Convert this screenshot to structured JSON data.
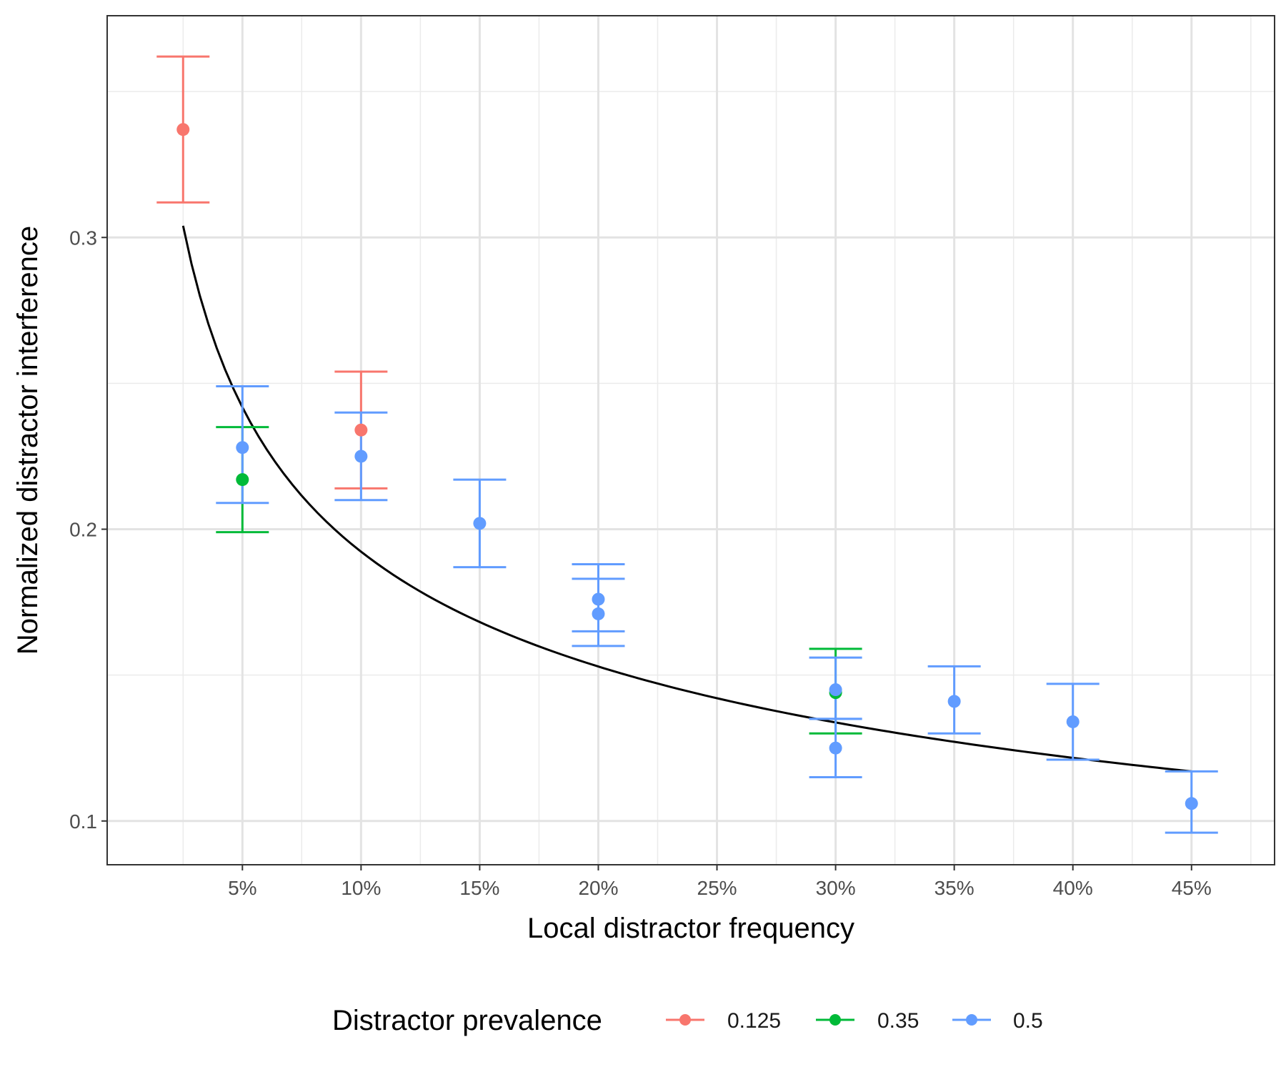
{
  "chart_data": {
    "type": "scatter",
    "title": "",
    "xlabel": "Local distractor frequency",
    "ylabel": "Normalized distractor interference",
    "x_ticks": [
      0.05,
      0.1,
      0.15,
      0.2,
      0.25,
      0.3,
      0.35,
      0.4,
      0.45
    ],
    "x_tick_labels": [
      "5%",
      "10%",
      "15%",
      "20%",
      "25%",
      "30%",
      "35%",
      "40%",
      "45%"
    ],
    "y_ticks": [
      0.1,
      0.2,
      0.3
    ],
    "y_tick_labels": [
      "0.1",
      "0.2",
      "0.3"
    ],
    "xlim": [
      -0.007,
      0.485
    ],
    "ylim": [
      0.085,
      0.376
    ],
    "grid": true,
    "legend": {
      "title": "Distractor prevalence",
      "position": "bottom"
    },
    "series": [
      {
        "name": "0.125",
        "color": "#F8766D",
        "points": [
          {
            "x": 0.025,
            "y": 0.337,
            "lo": 0.312,
            "hi": 0.362
          },
          {
            "x": 0.1,
            "y": 0.234,
            "lo": 0.214,
            "hi": 0.254
          }
        ]
      },
      {
        "name": "0.35",
        "color": "#00BA38",
        "points": [
          {
            "x": 0.05,
            "y": 0.217,
            "lo": 0.199,
            "hi": 0.235
          },
          {
            "x": 0.3,
            "y": 0.144,
            "lo": 0.13,
            "hi": 0.159
          }
        ]
      },
      {
        "name": "0.5",
        "color": "#619CFF",
        "points": [
          {
            "x": 0.05,
            "y": 0.228,
            "lo": 0.209,
            "hi": 0.249
          },
          {
            "x": 0.1,
            "y": 0.225,
            "lo": 0.21,
            "hi": 0.24
          },
          {
            "x": 0.15,
            "y": 0.202,
            "lo": 0.187,
            "hi": 0.217
          },
          {
            "x": 0.2,
            "y": 0.176,
            "lo": 0.165,
            "hi": 0.188
          },
          {
            "x": 0.2,
            "y": 0.171,
            "lo": 0.16,
            "hi": 0.183
          },
          {
            "x": 0.3,
            "y": 0.145,
            "lo": 0.135,
            "hi": 0.156
          },
          {
            "x": 0.3,
            "y": 0.125,
            "lo": 0.115,
            "hi": 0.135
          },
          {
            "x": 0.35,
            "y": 0.141,
            "lo": 0.13,
            "hi": 0.153
          },
          {
            "x": 0.4,
            "y": 0.134,
            "lo": 0.121,
            "hi": 0.147
          },
          {
            "x": 0.45,
            "y": 0.106,
            "lo": 0.096,
            "hi": 0.117
          }
        ]
      }
    ],
    "fit_line": {
      "color": "#000000",
      "points": [
        [
          0.025,
          0.304
        ],
        [
          0.03,
          0.287
        ],
        [
          0.04,
          0.26
        ],
        [
          0.05,
          0.241
        ],
        [
          0.06,
          0.227
        ],
        [
          0.07,
          0.216
        ],
        [
          0.08,
          0.207
        ],
        [
          0.09,
          0.199
        ],
        [
          0.1,
          0.213
        ],
        [
          0.12,
          0.2
        ],
        [
          0.15,
          0.188
        ],
        [
          0.175,
          0.177
        ],
        [
          0.2,
          0.169
        ],
        [
          0.25,
          0.156
        ],
        [
          0.3,
          0.144
        ],
        [
          0.35,
          0.134
        ],
        [
          0.4,
          0.125
        ],
        [
          0.45,
          0.117
        ]
      ]
    }
  }
}
